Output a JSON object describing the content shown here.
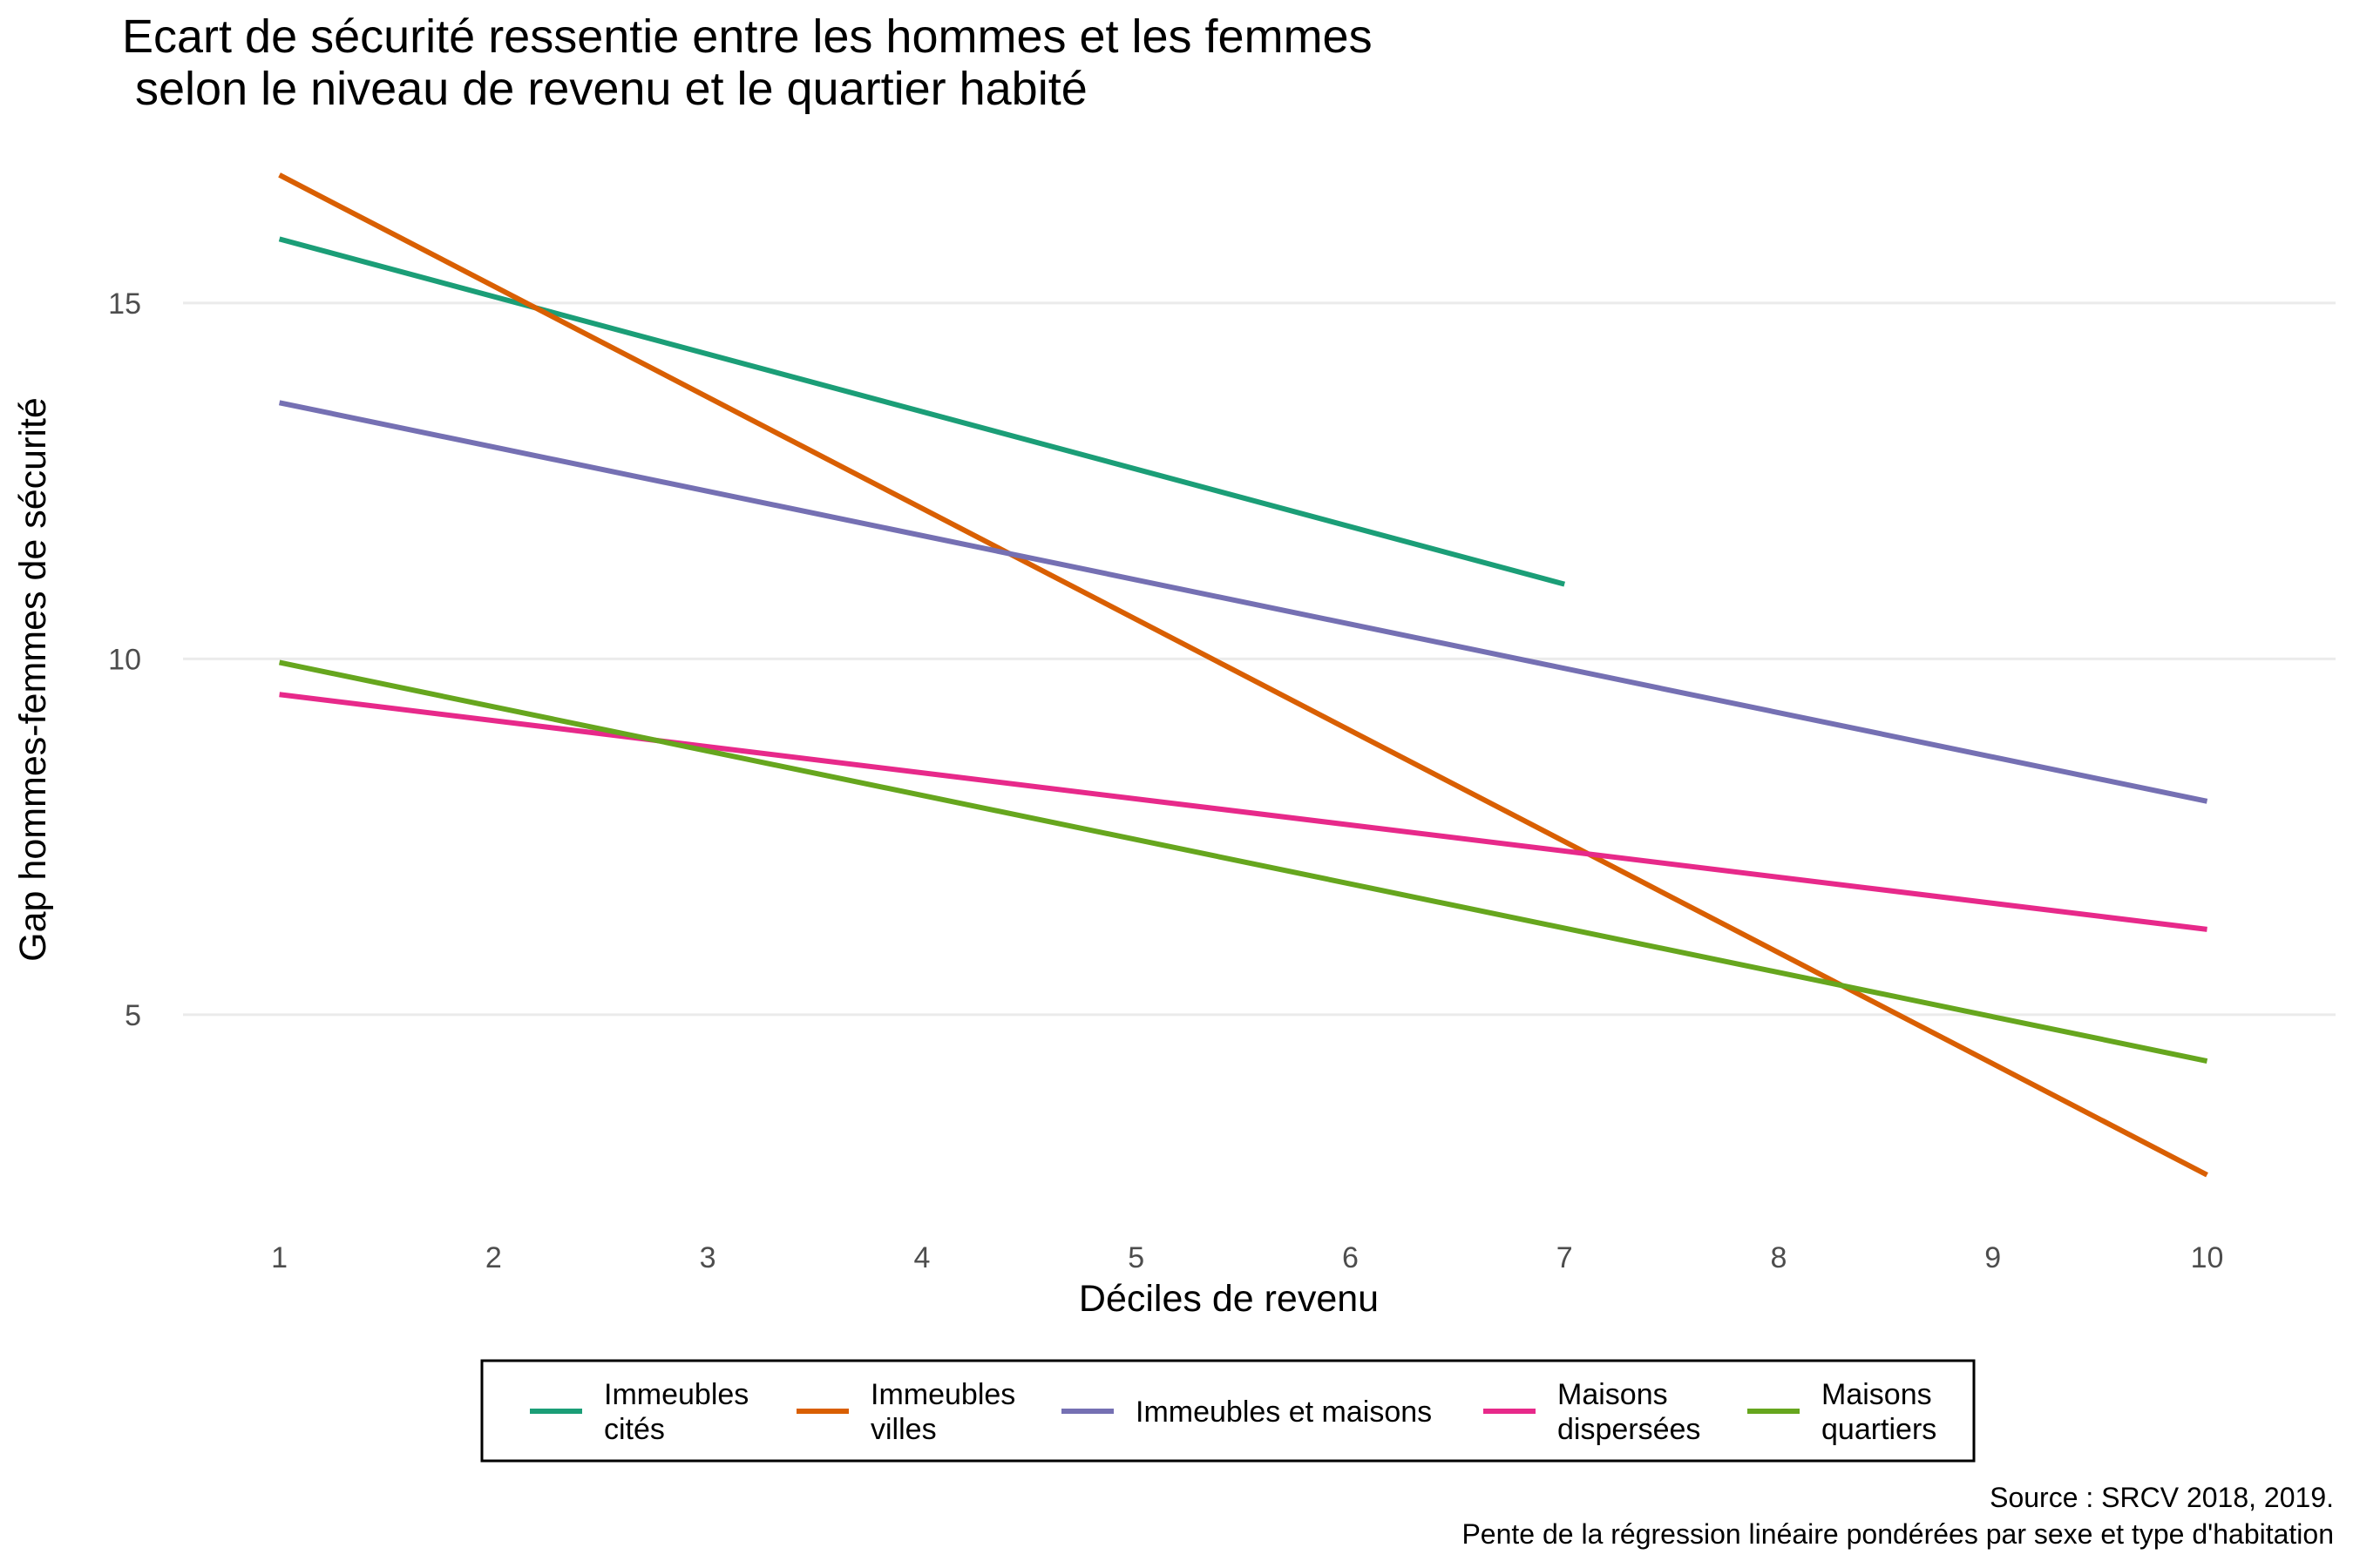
{
  "chart_data": {
    "type": "line",
    "title_lines": [
      "Ecart de sécurité ressentie entre les hommes et les femmes",
      " selon le niveau de revenu et le quartier habité"
    ],
    "xlabel": "Déciles de revenu",
    "ylabel": "Gap hommes-femmes de sécurité",
    "x_ticks": [
      1,
      2,
      3,
      4,
      5,
      6,
      7,
      8,
      9,
      10
    ],
    "y_ticks": [
      5,
      10,
      15
    ],
    "xlim": [
      0.55,
      10.6
    ],
    "ylim": [
      2.0,
      17.3
    ],
    "grid": true,
    "legend_position": "bottom",
    "series": [
      {
        "name_lines": [
          "Immeubles",
          " cités"
        ],
        "color": "#1b9e77",
        "x": [
          1,
          7
        ],
        "y": [
          15.9,
          11.05
        ]
      },
      {
        "name_lines": [
          "Immeubles",
          " villes"
        ],
        "color": "#d95f02",
        "x": [
          1,
          10
        ],
        "y": [
          16.8,
          2.75
        ]
      },
      {
        "name_lines": [
          "Immeubles et maisons"
        ],
        "color": "#7570b3",
        "x": [
          1,
          10
        ],
        "y": [
          13.6,
          8.0
        ]
      },
      {
        "name_lines": [
          "Maisons",
          " dispersées"
        ],
        "color": "#e7298a",
        "x": [
          1,
          10
        ],
        "y": [
          9.5,
          6.2
        ]
      },
      {
        "name_lines": [
          "Maisons",
          " quartiers"
        ],
        "color": "#66a61e",
        "x": [
          1,
          10
        ],
        "y": [
          9.95,
          4.35
        ]
      }
    ],
    "caption_lines": [
      "Source : SRCV 2018, 2019.",
      "Pente de la régression linéaire pondérées par sexe et type d'habitation"
    ]
  }
}
